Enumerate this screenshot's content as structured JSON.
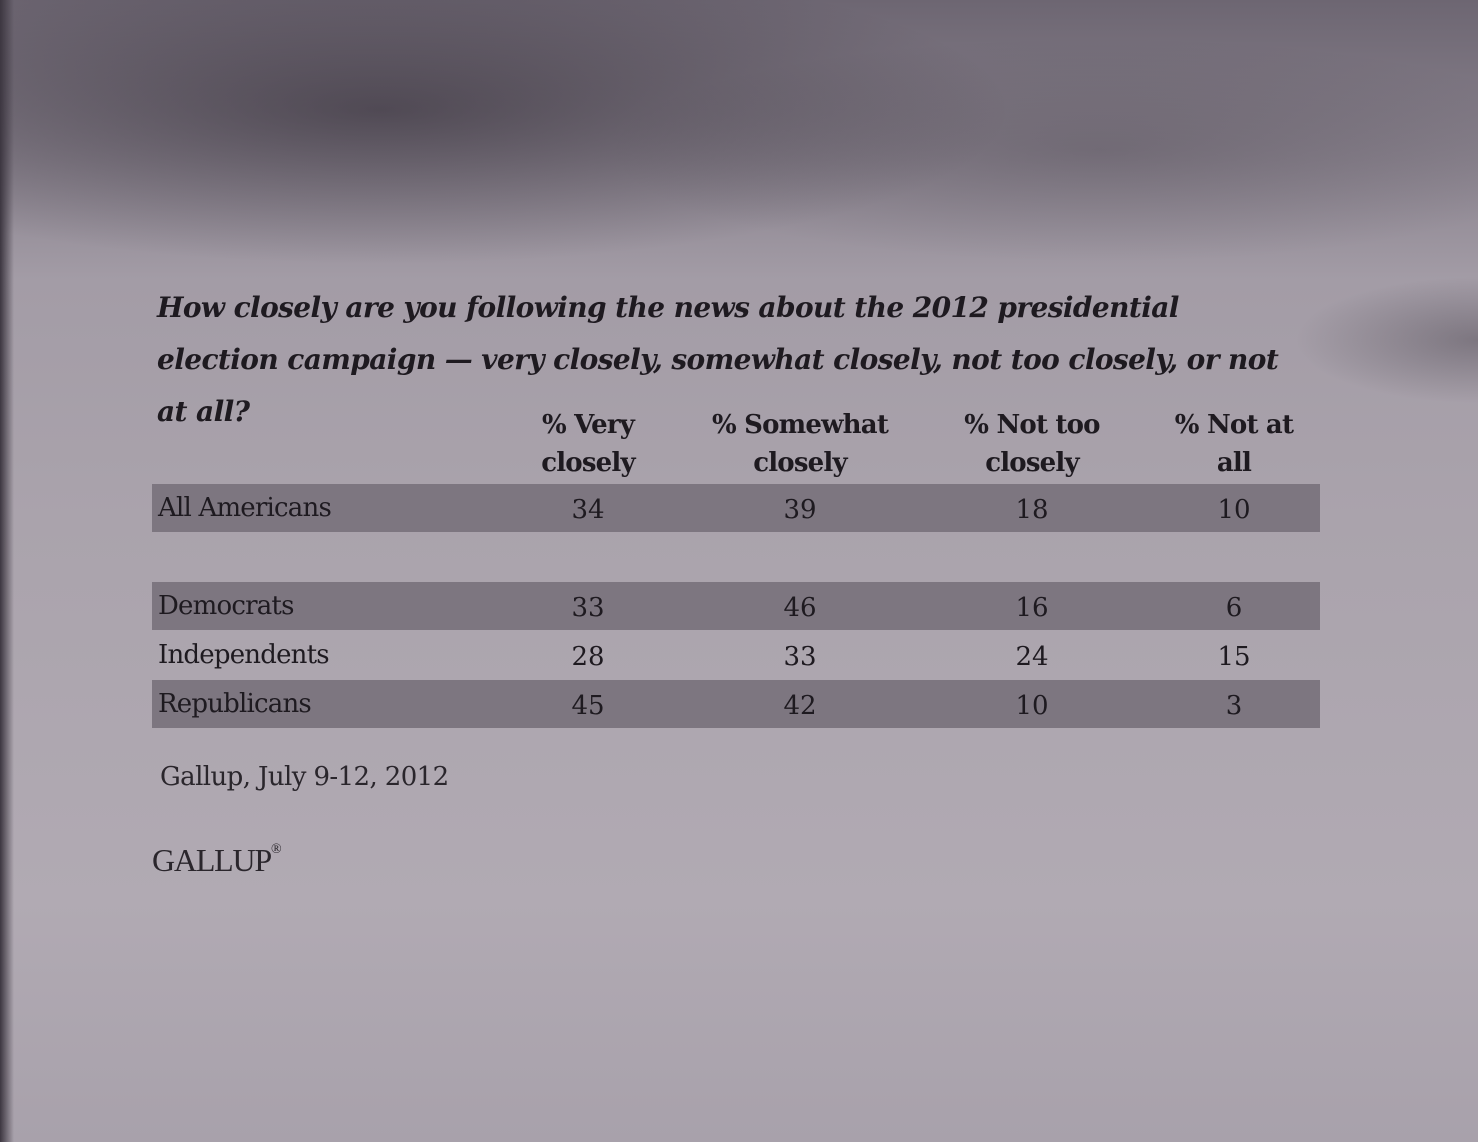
{
  "question": "How closely are you following the news about the 2012 presidential election campaign — very closely, somewhat closely, not too closely, or not at all?",
  "table": {
    "columns": [
      {
        "line1": "% Very",
        "line2": "closely"
      },
      {
        "line1": "% Somewhat",
        "line2": "closely"
      },
      {
        "line1": "% Not too",
        "line2": "closely"
      },
      {
        "line1": "% Not at",
        "line2": "all"
      }
    ],
    "rows": [
      {
        "label": "All Americans",
        "values": [
          "34",
          "39",
          "18",
          "10"
        ]
      },
      {
        "label": "Democrats",
        "values": [
          "33",
          "46",
          "16",
          "6"
        ]
      },
      {
        "label": "Independents",
        "values": [
          "28",
          "33",
          "24",
          "15"
        ]
      },
      {
        "label": "Republicans",
        "values": [
          "45",
          "42",
          "10",
          "3"
        ]
      }
    ]
  },
  "source": "Gallup, July 9-12, 2012",
  "logo_text": "GALLUP",
  "logo_mark": "®"
}
